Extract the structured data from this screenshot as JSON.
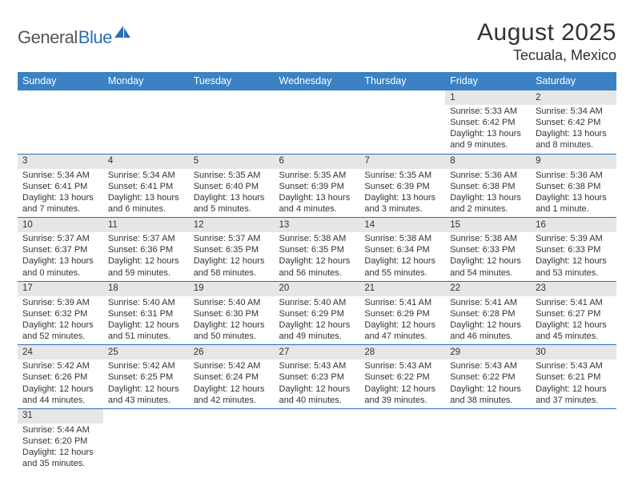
{
  "brand": {
    "part1": "General",
    "part2": "Blue"
  },
  "title": "August 2025",
  "location": "Tecuala, Mexico",
  "header_bg": "#3b82c4",
  "rule_color": "#2a6fb5",
  "daynum_bg": "#e6e6e6",
  "dow": [
    "Sunday",
    "Monday",
    "Tuesday",
    "Wednesday",
    "Thursday",
    "Friday",
    "Saturday"
  ],
  "weeks": [
    [
      null,
      null,
      null,
      null,
      null,
      {
        "n": "1",
        "sr": "Sunrise: 5:33 AM",
        "ss": "Sunset: 6:42 PM",
        "d1": "Daylight: 13 hours",
        "d2": "and 9 minutes."
      },
      {
        "n": "2",
        "sr": "Sunrise: 5:34 AM",
        "ss": "Sunset: 6:42 PM",
        "d1": "Daylight: 13 hours",
        "d2": "and 8 minutes."
      }
    ],
    [
      {
        "n": "3",
        "sr": "Sunrise: 5:34 AM",
        "ss": "Sunset: 6:41 PM",
        "d1": "Daylight: 13 hours",
        "d2": "and 7 minutes."
      },
      {
        "n": "4",
        "sr": "Sunrise: 5:34 AM",
        "ss": "Sunset: 6:41 PM",
        "d1": "Daylight: 13 hours",
        "d2": "and 6 minutes."
      },
      {
        "n": "5",
        "sr": "Sunrise: 5:35 AM",
        "ss": "Sunset: 6:40 PM",
        "d1": "Daylight: 13 hours",
        "d2": "and 5 minutes."
      },
      {
        "n": "6",
        "sr": "Sunrise: 5:35 AM",
        "ss": "Sunset: 6:39 PM",
        "d1": "Daylight: 13 hours",
        "d2": "and 4 minutes."
      },
      {
        "n": "7",
        "sr": "Sunrise: 5:35 AM",
        "ss": "Sunset: 6:39 PM",
        "d1": "Daylight: 13 hours",
        "d2": "and 3 minutes."
      },
      {
        "n": "8",
        "sr": "Sunrise: 5:36 AM",
        "ss": "Sunset: 6:38 PM",
        "d1": "Daylight: 13 hours",
        "d2": "and 2 minutes."
      },
      {
        "n": "9",
        "sr": "Sunrise: 5:36 AM",
        "ss": "Sunset: 6:38 PM",
        "d1": "Daylight: 13 hours",
        "d2": "and 1 minute."
      }
    ],
    [
      {
        "n": "10",
        "sr": "Sunrise: 5:37 AM",
        "ss": "Sunset: 6:37 PM",
        "d1": "Daylight: 13 hours",
        "d2": "and 0 minutes."
      },
      {
        "n": "11",
        "sr": "Sunrise: 5:37 AM",
        "ss": "Sunset: 6:36 PM",
        "d1": "Daylight: 12 hours",
        "d2": "and 59 minutes."
      },
      {
        "n": "12",
        "sr": "Sunrise: 5:37 AM",
        "ss": "Sunset: 6:35 PM",
        "d1": "Daylight: 12 hours",
        "d2": "and 58 minutes."
      },
      {
        "n": "13",
        "sr": "Sunrise: 5:38 AM",
        "ss": "Sunset: 6:35 PM",
        "d1": "Daylight: 12 hours",
        "d2": "and 56 minutes."
      },
      {
        "n": "14",
        "sr": "Sunrise: 5:38 AM",
        "ss": "Sunset: 6:34 PM",
        "d1": "Daylight: 12 hours",
        "d2": "and 55 minutes."
      },
      {
        "n": "15",
        "sr": "Sunrise: 5:38 AM",
        "ss": "Sunset: 6:33 PM",
        "d1": "Daylight: 12 hours",
        "d2": "and 54 minutes."
      },
      {
        "n": "16",
        "sr": "Sunrise: 5:39 AM",
        "ss": "Sunset: 6:33 PM",
        "d1": "Daylight: 12 hours",
        "d2": "and 53 minutes."
      }
    ],
    [
      {
        "n": "17",
        "sr": "Sunrise: 5:39 AM",
        "ss": "Sunset: 6:32 PM",
        "d1": "Daylight: 12 hours",
        "d2": "and 52 minutes."
      },
      {
        "n": "18",
        "sr": "Sunrise: 5:40 AM",
        "ss": "Sunset: 6:31 PM",
        "d1": "Daylight: 12 hours",
        "d2": "and 51 minutes."
      },
      {
        "n": "19",
        "sr": "Sunrise: 5:40 AM",
        "ss": "Sunset: 6:30 PM",
        "d1": "Daylight: 12 hours",
        "d2": "and 50 minutes."
      },
      {
        "n": "20",
        "sr": "Sunrise: 5:40 AM",
        "ss": "Sunset: 6:29 PM",
        "d1": "Daylight: 12 hours",
        "d2": "and 49 minutes."
      },
      {
        "n": "21",
        "sr": "Sunrise: 5:41 AM",
        "ss": "Sunset: 6:29 PM",
        "d1": "Daylight: 12 hours",
        "d2": "and 47 minutes."
      },
      {
        "n": "22",
        "sr": "Sunrise: 5:41 AM",
        "ss": "Sunset: 6:28 PM",
        "d1": "Daylight: 12 hours",
        "d2": "and 46 minutes."
      },
      {
        "n": "23",
        "sr": "Sunrise: 5:41 AM",
        "ss": "Sunset: 6:27 PM",
        "d1": "Daylight: 12 hours",
        "d2": "and 45 minutes."
      }
    ],
    [
      {
        "n": "24",
        "sr": "Sunrise: 5:42 AM",
        "ss": "Sunset: 6:26 PM",
        "d1": "Daylight: 12 hours",
        "d2": "and 44 minutes."
      },
      {
        "n": "25",
        "sr": "Sunrise: 5:42 AM",
        "ss": "Sunset: 6:25 PM",
        "d1": "Daylight: 12 hours",
        "d2": "and 43 minutes."
      },
      {
        "n": "26",
        "sr": "Sunrise: 5:42 AM",
        "ss": "Sunset: 6:24 PM",
        "d1": "Daylight: 12 hours",
        "d2": "and 42 minutes."
      },
      {
        "n": "27",
        "sr": "Sunrise: 5:43 AM",
        "ss": "Sunset: 6:23 PM",
        "d1": "Daylight: 12 hours",
        "d2": "and 40 minutes."
      },
      {
        "n": "28",
        "sr": "Sunrise: 5:43 AM",
        "ss": "Sunset: 6:22 PM",
        "d1": "Daylight: 12 hours",
        "d2": "and 39 minutes."
      },
      {
        "n": "29",
        "sr": "Sunrise: 5:43 AM",
        "ss": "Sunset: 6:22 PM",
        "d1": "Daylight: 12 hours",
        "d2": "and 38 minutes."
      },
      {
        "n": "30",
        "sr": "Sunrise: 5:43 AM",
        "ss": "Sunset: 6:21 PM",
        "d1": "Daylight: 12 hours",
        "d2": "and 37 minutes."
      }
    ],
    [
      {
        "n": "31",
        "sr": "Sunrise: 5:44 AM",
        "ss": "Sunset: 6:20 PM",
        "d1": "Daylight: 12 hours",
        "d2": "and 35 minutes."
      },
      null,
      null,
      null,
      null,
      null,
      null
    ]
  ]
}
